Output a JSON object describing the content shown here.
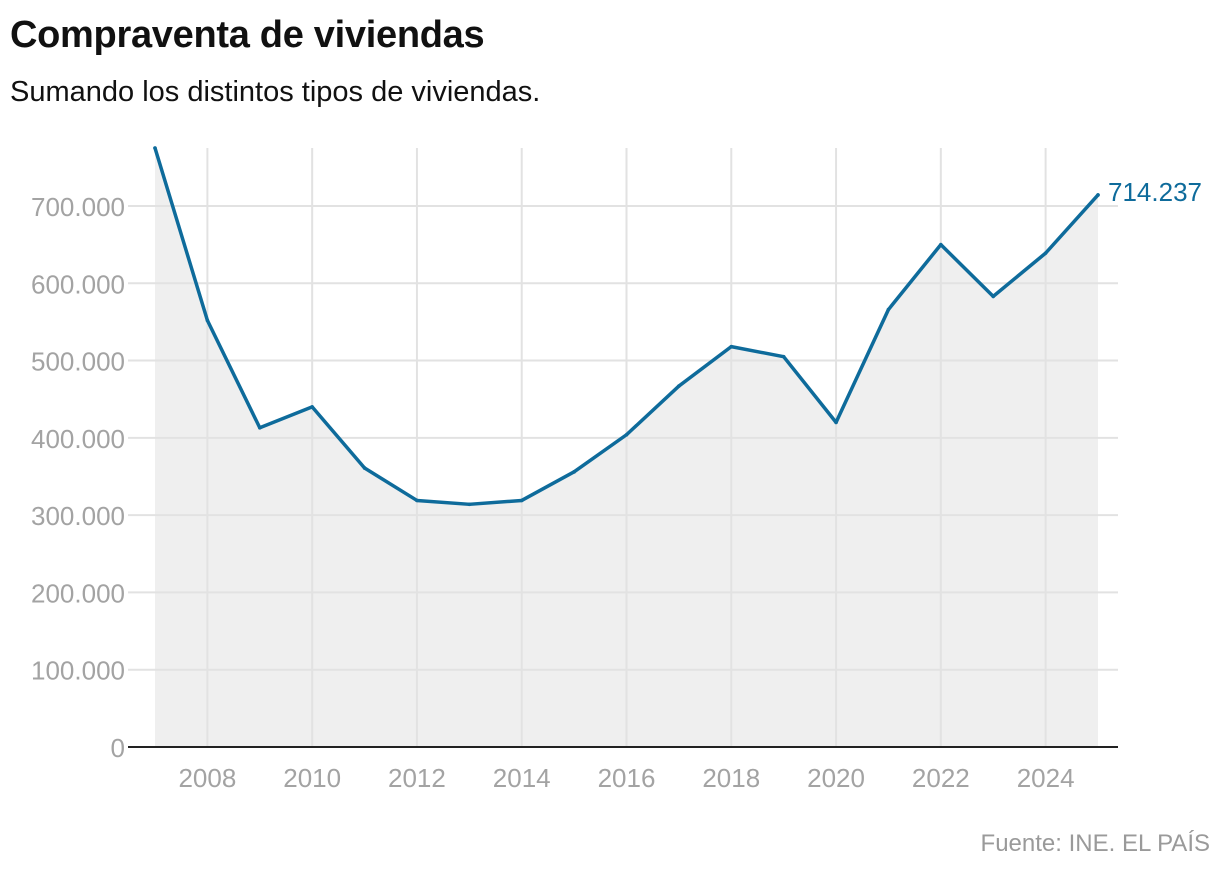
{
  "title": "Compraventa de viviendas",
  "subtitle": "Sumando los distintos tipos de viviendas.",
  "source": "Fuente: INE. EL PAÍS",
  "colors": {
    "line": "#0e6b9b",
    "area": "#efefef",
    "grid": "#e2e2e2",
    "axis": "#222222",
    "tick_text": "#a3a3a3"
  },
  "chart_data": {
    "type": "area",
    "title": "Compraventa de viviendas",
    "subtitle": "Sumando los distintos tipos de viviendas.",
    "xlabel": "",
    "ylabel": "",
    "x": [
      2007,
      2008,
      2009,
      2010,
      2011,
      2012,
      2013,
      2014,
      2015,
      2016,
      2017,
      2018,
      2019,
      2020,
      2021,
      2022,
      2023,
      2024,
      2025
    ],
    "series": [
      {
        "values": [
          775000,
          552000,
          413000,
          440000,
          361000,
          319000,
          314000,
          319000,
          356000,
          404000,
          467000,
          518000,
          505000,
          420000,
          566000,
          650000,
          583000,
          639000,
          714237
        ]
      }
    ],
    "xlim": [
      2006.5,
      2025.4
    ],
    "ylim": [
      0,
      775000
    ],
    "x_ticks": [
      2008,
      2010,
      2012,
      2014,
      2016,
      2018,
      2020,
      2022,
      2024
    ],
    "x_tick_labels": [
      "2008",
      "2010",
      "2012",
      "2014",
      "2016",
      "2018",
      "2020",
      "2022",
      "2024"
    ],
    "y_ticks": [
      0,
      100000,
      200000,
      300000,
      400000,
      500000,
      600000,
      700000
    ],
    "y_tick_labels": [
      "0",
      "100.000",
      "200.000",
      "300.000",
      "400.000",
      "500.000",
      "600.000",
      "700.000"
    ],
    "end_label": "714.237",
    "grid": true,
    "legend": "none"
  }
}
